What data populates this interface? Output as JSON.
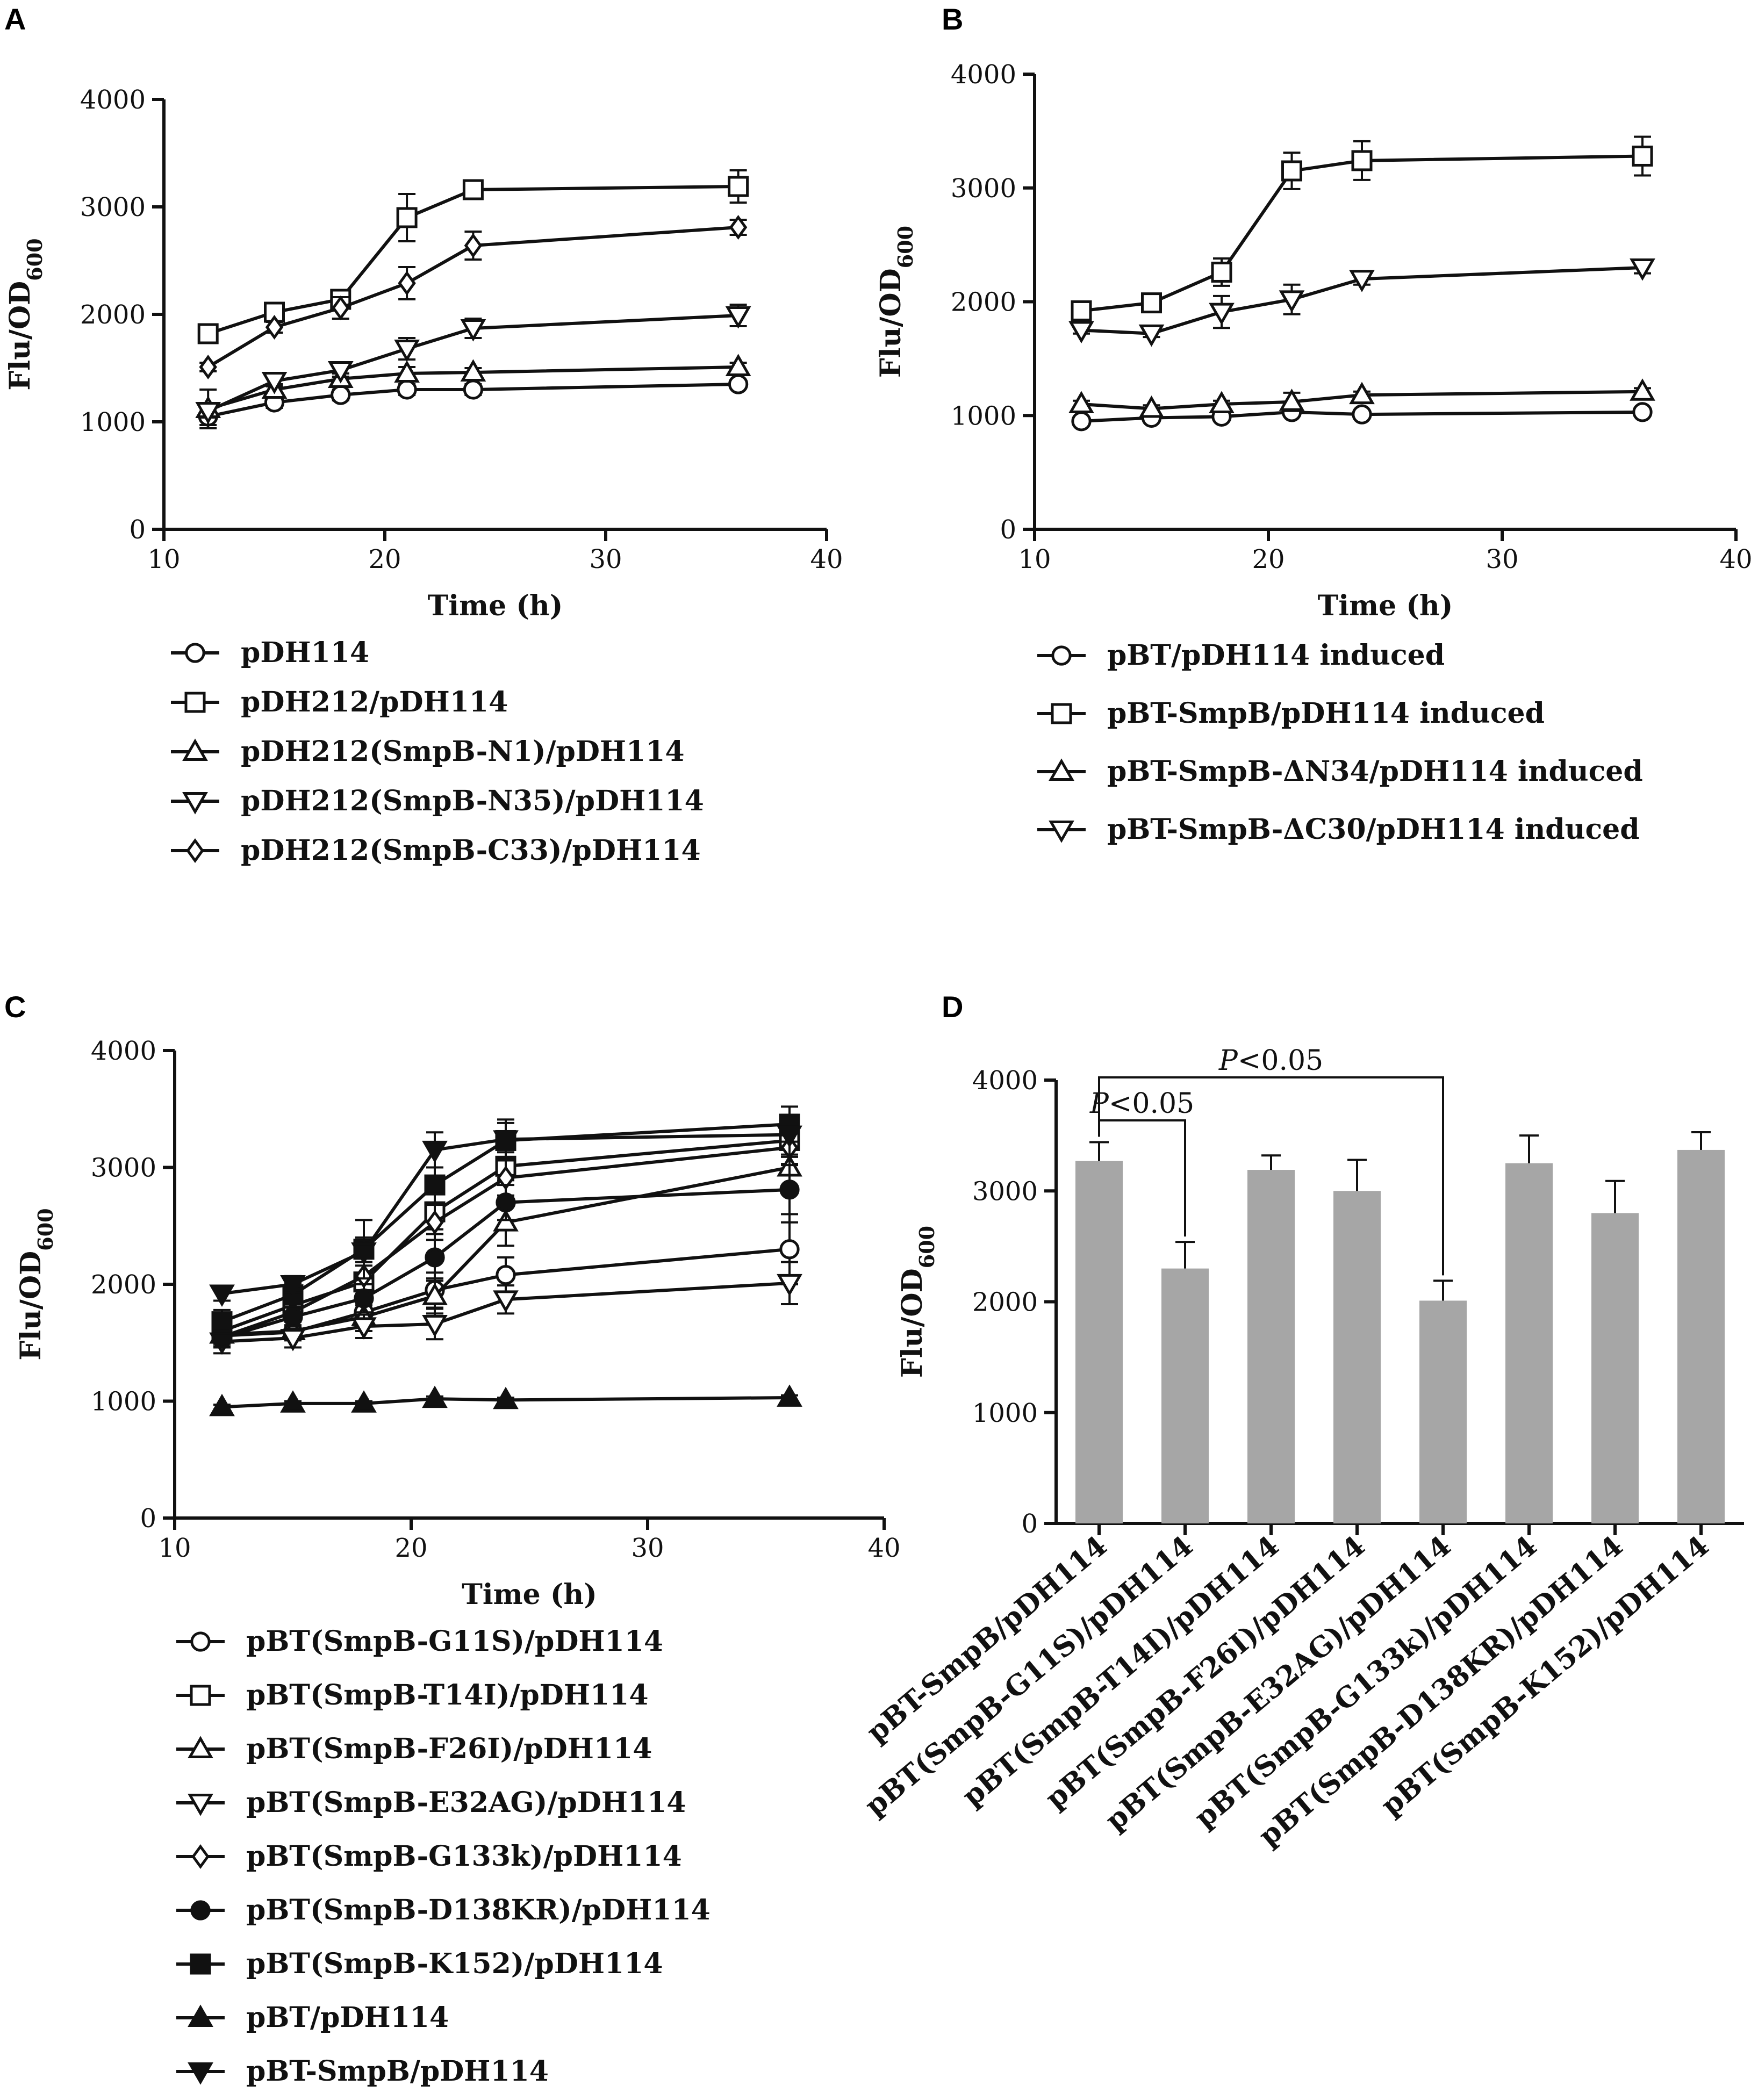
{
  "figure": {
    "panels": [
      "A",
      "B",
      "C",
      "D"
    ]
  },
  "chart_data": [
    {
      "panel": "A",
      "type": "line",
      "xlabel": "Time (h)",
      "ylabel": "Flu/OD",
      "ylabel_sub": "600",
      "xlim": [
        10,
        40
      ],
      "ylim": [
        0,
        4000
      ],
      "xticks": [
        10,
        20,
        30,
        40
      ],
      "yticks": [
        0,
        1000,
        2000,
        3000,
        4000
      ],
      "series": [
        {
          "name": "pDH114",
          "marker": "circle-open",
          "x": [
            12,
            15,
            18,
            21,
            24,
            36
          ],
          "values": [
            1050,
            1180,
            1250,
            1300,
            1300,
            1350
          ],
          "errors": [
            80,
            50,
            50,
            50,
            50,
            40
          ]
        },
        {
          "name": "pDH212/pDH114",
          "marker": "square-open",
          "x": [
            12,
            15,
            18,
            21,
            24,
            36
          ],
          "values": [
            1820,
            2020,
            2140,
            2900,
            3160,
            3190
          ],
          "errors": [
            40,
            50,
            60,
            220,
            80,
            150
          ]
        },
        {
          "name": "pDH212(SmpB-N1)/pDH114",
          "marker": "triangle-up-open",
          "x": [
            12,
            15,
            18,
            21,
            24,
            36
          ],
          "values": [
            1120,
            1300,
            1400,
            1450,
            1460,
            1510
          ],
          "errors": [
            180,
            50,
            50,
            60,
            40,
            40
          ]
        },
        {
          "name": "pDH212(SmpB-N35)/pDH114",
          "marker": "triangle-down-open",
          "x": [
            12,
            15,
            18,
            21,
            24,
            36
          ],
          "values": [
            1100,
            1380,
            1480,
            1680,
            1870,
            1990
          ],
          "errors": [
            60,
            50,
            60,
            100,
            90,
            100
          ]
        },
        {
          "name": "pDH212(SmpB-C33)/pDH114",
          "marker": "diamond-open",
          "x": [
            12,
            15,
            18,
            21,
            24,
            36
          ],
          "values": [
            1510,
            1880,
            2060,
            2290,
            2640,
            2810
          ],
          "errors": [
            40,
            50,
            100,
            150,
            130,
            70
          ]
        }
      ]
    },
    {
      "panel": "B",
      "type": "line",
      "xlabel": "Time (h)",
      "ylabel": "Flu/OD",
      "ylabel_sub": "600",
      "xlim": [
        10,
        40
      ],
      "ylim": [
        0,
        4000
      ],
      "xticks": [
        10,
        20,
        30,
        40
      ],
      "yticks": [
        0,
        1000,
        2000,
        3000,
        4000
      ],
      "series": [
        {
          "name": "pBT/pDH114 induced",
          "marker": "circle-open",
          "x": [
            12,
            15,
            18,
            21,
            24,
            36
          ],
          "values": [
            950,
            980,
            990,
            1030,
            1010,
            1030
          ],
          "errors": [
            30,
            30,
            30,
            30,
            30,
            30
          ]
        },
        {
          "name": "pBT-SmpB/pDH114 induced",
          "marker": "square-open",
          "x": [
            12,
            15,
            18,
            21,
            24,
            36
          ],
          "values": [
            1920,
            1990,
            2260,
            3150,
            3240,
            3280
          ],
          "errors": [
            60,
            70,
            120,
            160,
            170,
            170
          ]
        },
        {
          "name": "pBT-SmpB-ΔN34/pDH114 induced",
          "marker": "triangle-up-open",
          "x": [
            12,
            15,
            18,
            21,
            24,
            36
          ],
          "values": [
            1100,
            1060,
            1100,
            1120,
            1180,
            1210
          ],
          "errors": [
            30,
            30,
            30,
            80,
            30,
            30
          ]
        },
        {
          "name": "pBT-SmpB-ΔC30/pDH114 induced",
          "marker": "triangle-down-open",
          "x": [
            12,
            15,
            18,
            21,
            24,
            36
          ],
          "values": [
            1750,
            1720,
            1910,
            2020,
            2200,
            2300
          ],
          "errors": [
            30,
            30,
            140,
            130,
            50,
            50
          ]
        }
      ]
    },
    {
      "panel": "C",
      "type": "line",
      "xlabel": "Time (h)",
      "ylabel": "Flu/OD",
      "ylabel_sub": "600",
      "xlim": [
        10,
        40
      ],
      "ylim": [
        0,
        4000
      ],
      "xticks": [
        10,
        20,
        30,
        40
      ],
      "yticks": [
        0,
        1000,
        2000,
        3000,
        4000
      ],
      "series": [
        {
          "name": "pBT(SmpB-G11S)/pDH114",
          "marker": "circle-open",
          "x": [
            12,
            15,
            18,
            21,
            24,
            36
          ],
          "values": [
            1560,
            1590,
            1760,
            1950,
            2080,
            2300
          ],
          "errors": [
            60,
            60,
            120,
            150,
            150,
            300
          ]
        },
        {
          "name": "pBT(SmpB-T14I)/pDH114",
          "marker": "square-open",
          "x": [
            12,
            15,
            18,
            21,
            24,
            36
          ],
          "values": [
            1600,
            1820,
            2020,
            2620,
            3010,
            3230
          ],
          "errors": [
            80,
            80,
            200,
            150,
            120,
            200
          ]
        },
        {
          "name": "pBT(SmpB-F26I)/pDH114",
          "marker": "triangle-up-open",
          "x": [
            12,
            15,
            18,
            21,
            24,
            36
          ],
          "values": [
            1570,
            1600,
            1720,
            1900,
            2530,
            3000
          ],
          "errors": [
            80,
            80,
            120,
            150,
            200,
            180
          ]
        },
        {
          "name": "pBT(SmpB-E32AG)/pDH114",
          "marker": "triangle-down-open",
          "x": [
            12,
            15,
            18,
            21,
            24,
            36
          ],
          "values": [
            1510,
            1540,
            1640,
            1660,
            1870,
            2010
          ],
          "errors": [
            100,
            80,
            100,
            130,
            120,
            180
          ]
        },
        {
          "name": "pBT(SmpB-G133k)/pDH114",
          "marker": "diamond-open",
          "x": [
            12,
            15,
            18,
            21,
            24,
            36
          ],
          "values": [
            1550,
            1760,
            2070,
            2530,
            2910,
            3170
          ],
          "errors": [
            80,
            80,
            120,
            150,
            150,
            150
          ]
        },
        {
          "name": "pBT(SmpB-D138KR)/pDH114",
          "marker": "circle-filled",
          "x": [
            12,
            15,
            18,
            21,
            24,
            36
          ],
          "values": [
            1540,
            1720,
            1880,
            2230,
            2700,
            2810
          ],
          "errors": [
            80,
            80,
            120,
            200,
            150,
            280
          ]
        },
        {
          "name": "pBT(SmpB-K152)/pDH114",
          "marker": "square-filled",
          "x": [
            12,
            15,
            18,
            21,
            24,
            36
          ],
          "values": [
            1680,
            1910,
            2300,
            2850,
            3230,
            3370
          ],
          "errors": [
            100,
            100,
            250,
            150,
            150,
            150
          ]
        },
        {
          "name": "pBT/pDH114",
          "marker": "triangle-up-filled",
          "x": [
            12,
            15,
            18,
            21,
            24,
            36
          ],
          "values": [
            950,
            980,
            980,
            1020,
            1010,
            1030
          ],
          "errors": [
            20,
            20,
            20,
            20,
            20,
            20
          ]
        },
        {
          "name": "pBT-SmpB/pDH114",
          "marker": "triangle-down-filled",
          "x": [
            12,
            15,
            18,
            21,
            24,
            36
          ],
          "values": [
            1920,
            2000,
            2280,
            3150,
            3240,
            3280
          ],
          "errors": [
            60,
            70,
            120,
            150,
            170,
            170
          ]
        }
      ]
    },
    {
      "panel": "D",
      "type": "bar",
      "ylabel": "Flu/OD",
      "ylabel_sub": "600",
      "ylim": [
        0,
        4000
      ],
      "yticks": [
        0,
        1000,
        2000,
        3000,
        4000
      ],
      "categories": [
        "pBT-SmpB/pDH114",
        "pBT(SmpB-G11S)/pDH114",
        "pBT(SmpB-T14I)/pDH114",
        "pBT(SmpB-F26I)/pDH114",
        "pBT(SmpB-E32AG)/pDH114",
        "pBT(SmpB-G133k)/pDH114",
        "pBT(SmpB-D138KR)/pDH114",
        "pBT(SmpB-K152)/pDH114"
      ],
      "values": [
        3270,
        2300,
        3190,
        3000,
        2010,
        3250,
        2800,
        3370
      ],
      "errors": [
        170,
        240,
        130,
        280,
        180,
        250,
        290,
        160
      ],
      "annotations": [
        {
          "text_italic": "P",
          "text": "<0.05",
          "from": 0,
          "to": 1,
          "level": 1
        },
        {
          "text_italic": "P",
          "text": "<0.05",
          "from": 0,
          "to": 4,
          "level": 2
        }
      ]
    }
  ]
}
